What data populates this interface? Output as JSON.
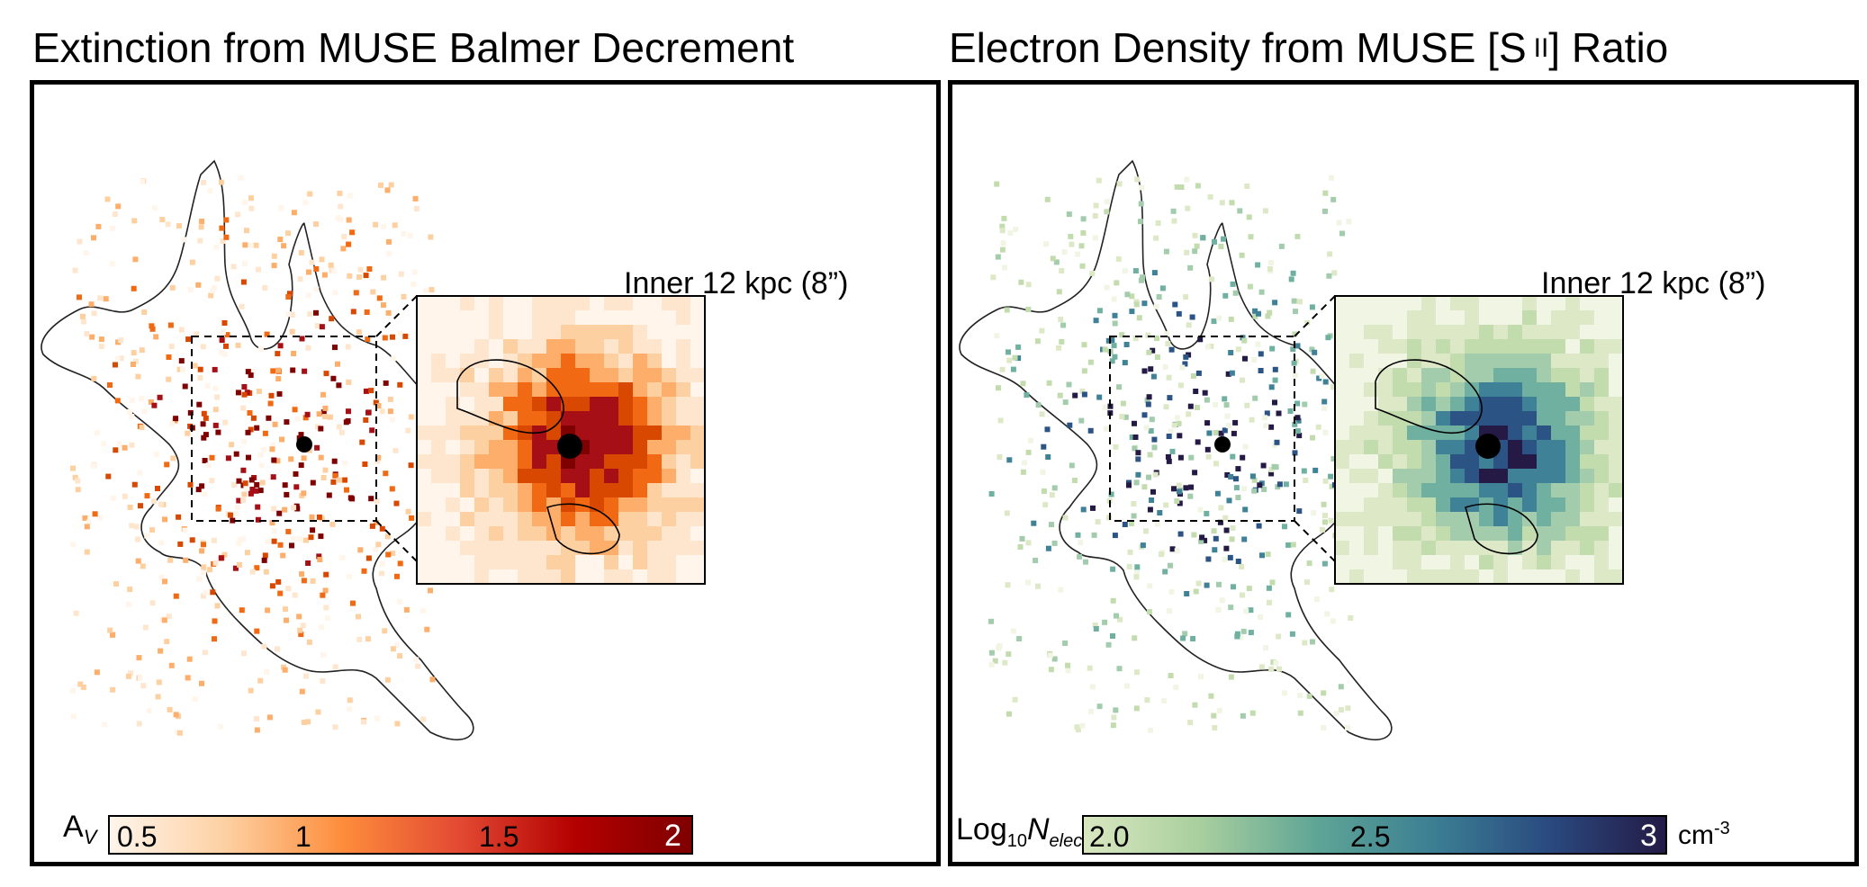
{
  "figure": {
    "left_panel": {
      "title": "Extinction from MUSE Balmer Decrement",
      "inset_label": "Inner 12 kpc (8”)",
      "colorbar": {
        "label_main": "A",
        "label_sub": "V",
        "ticks": [
          "0.5",
          "1",
          "1.5",
          "2"
        ],
        "unit": "",
        "colors": [
          "#fff5eb",
          "#fdd0a2",
          "#fd8d3c",
          "#e34a33",
          "#b30000",
          "#7f0000"
        ]
      }
    },
    "right_panel": {
      "title_main": "Electron Density from MUSE [S",
      "title_ion": "II",
      "title_end": "] Ratio",
      "inset_label": "Inner 12 kpc (8”)",
      "colorbar": {
        "label_prefix": "Log",
        "label_sub10": "10",
        "label_N": "N",
        "label_sub": "elec",
        "ticks": [
          "2.0",
          "2.5",
          "3"
        ],
        "unit_base": "cm",
        "unit_exp": "-3",
        "colors": [
          "#d9e7c0",
          "#a8cf9e",
          "#5fa596",
          "#3c7f93",
          "#2a4a80",
          "#241a45"
        ]
      }
    }
  }
}
